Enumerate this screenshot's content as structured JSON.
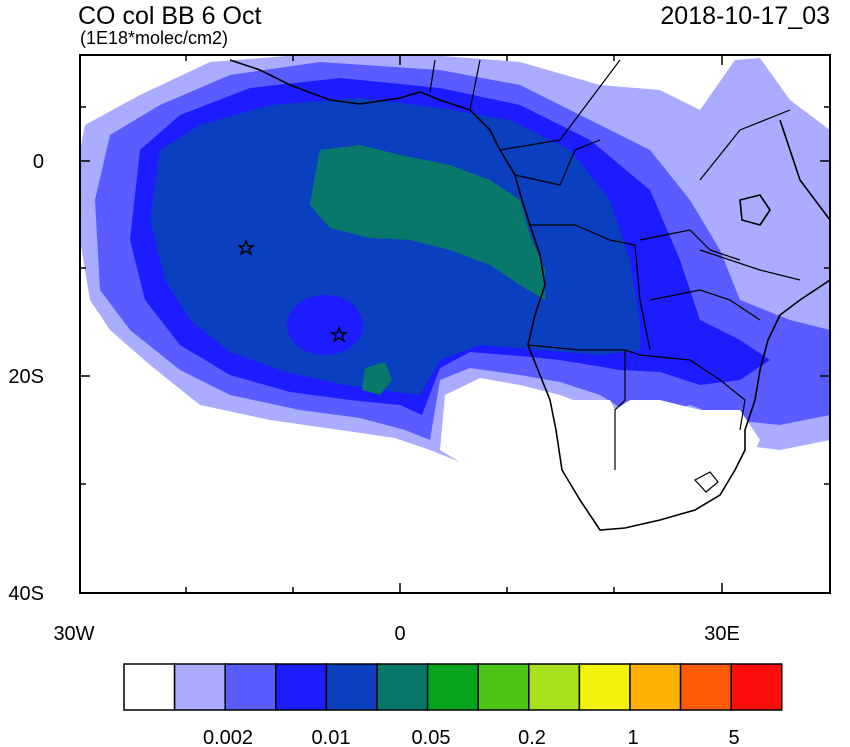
{
  "title": "CO col BB 6 Oct",
  "units": "(1E18*molec/cm2)",
  "datetime": "2018-10-17_03",
  "axes": {
    "x_ticks": [
      "30W",
      "0",
      "30E"
    ],
    "y_ticks": [
      "0",
      "20S",
      "40S"
    ]
  },
  "colorbar": {
    "colors": [
      "#ffffff",
      "#a9acff",
      "#5a5cff",
      "#1c1cff",
      "#0a3fc0",
      "#08786a",
      "#08a51c",
      "#4cc416",
      "#a8e01c",
      "#f2f20a",
      "#ffb000",
      "#ff5a08",
      "#ff0d0d"
    ],
    "labels": [
      "0.002",
      "0.01",
      "0.05",
      "0.2",
      "1",
      "5"
    ]
  },
  "markers": [
    {
      "name": "star-marker-1",
      "lon": -14.3,
      "lat": -8.0
    },
    {
      "name": "star-marker-2",
      "lon": -5.7,
      "lat": -16.0
    }
  ]
}
